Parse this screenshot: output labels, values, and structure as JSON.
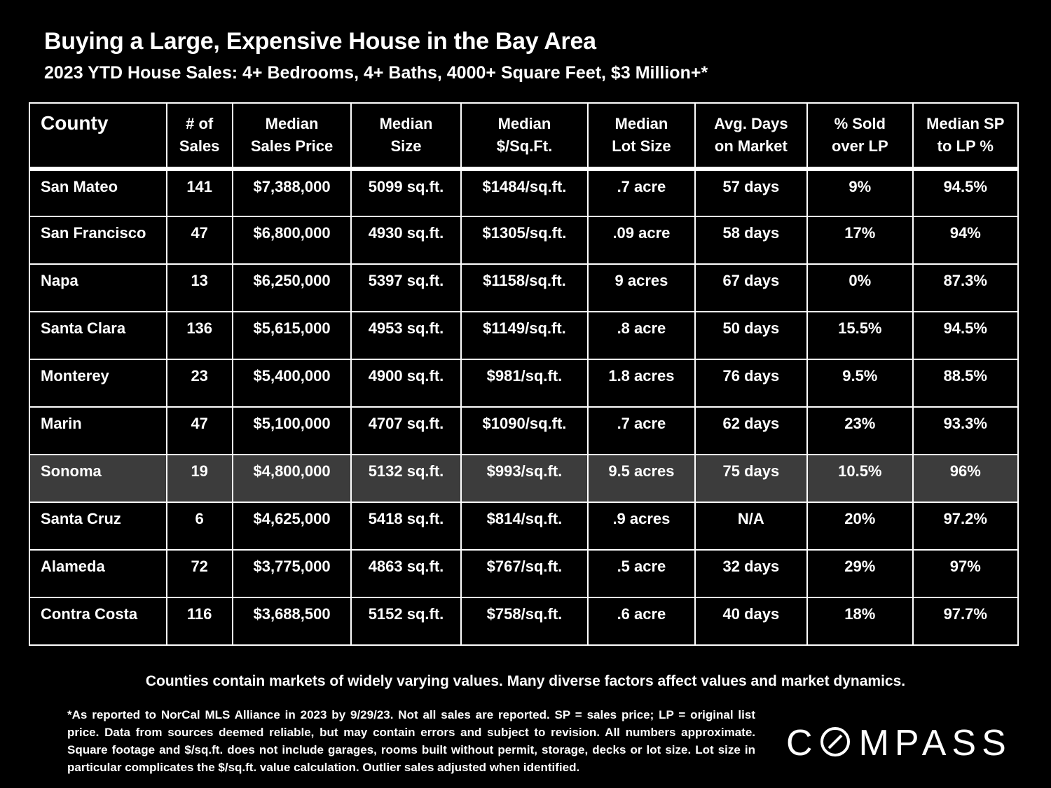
{
  "title": "Buying a Large, Expensive House in the Bay Area",
  "subtitle": "2023 YTD House Sales:  4+ Bedrooms, 4+ Baths, 4000+ Square Feet, $3 Million+*",
  "chart_data": {
    "type": "table",
    "columns": [
      {
        "line1": "County",
        "line2": ""
      },
      {
        "line1": "# of",
        "line2": "Sales"
      },
      {
        "line1": "Median",
        "line2": "Sales Price"
      },
      {
        "line1": "Median",
        "line2": "Size"
      },
      {
        "line1": "Median",
        "line2": "$/Sq.Ft."
      },
      {
        "line1": "Median",
        "line2": "Lot Size"
      },
      {
        "line1": "Avg. Days",
        "line2": "on Market"
      },
      {
        "line1": "% Sold",
        "line2": "over LP"
      },
      {
        "line1": "Median SP",
        "line2": "to LP %"
      }
    ],
    "rows": [
      [
        "San Mateo",
        "141",
        "$7,388,000",
        "5099 sq.ft.",
        "$1484/sq.ft.",
        ".7 acre",
        "57 days",
        "9%",
        "94.5%"
      ],
      [
        "San Francisco",
        "47",
        "$6,800,000",
        "4930 sq.ft.",
        "$1305/sq.ft.",
        ".09 acre",
        "58 days",
        "17%",
        "94%"
      ],
      [
        "Napa",
        "13",
        "$6,250,000",
        "5397 sq.ft.",
        "$1158/sq.ft.",
        "9 acres",
        "67 days",
        "0%",
        "87.3%"
      ],
      [
        "Santa Clara",
        "136",
        "$5,615,000",
        "4953 sq.ft.",
        "$1149/sq.ft.",
        ".8 acre",
        "50 days",
        "15.5%",
        "94.5%"
      ],
      [
        "Monterey",
        "23",
        "$5,400,000",
        "4900 sq.ft.",
        "$981/sq.ft.",
        "1.8 acres",
        "76 days",
        "9.5%",
        "88.5%"
      ],
      [
        "Marin",
        "47",
        "$5,100,000",
        "4707 sq.ft.",
        "$1090/sq.ft.",
        ".7 acre",
        "62 days",
        "23%",
        "93.3%"
      ],
      [
        "Sonoma",
        "19",
        "$4,800,000",
        "5132 sq.ft.",
        "$993/sq.ft.",
        "9.5 acres",
        "75 days",
        "10.5%",
        "96%"
      ],
      [
        "Santa Cruz",
        "6",
        "$4,625,000",
        "5418 sq.ft.",
        "$814/sq.ft.",
        ".9 acres",
        "N/A",
        "20%",
        "97.2%"
      ],
      [
        "Alameda",
        "72",
        "$3,775,000",
        "4863 sq.ft.",
        "$767/sq.ft.",
        ".5 acre",
        "32 days",
        "29%",
        "97%"
      ],
      [
        "Contra Costa",
        "116",
        "$3,688,500",
        "5152 sq.ft.",
        "$758/sq.ft.",
        ".6 acre",
        "40 days",
        "18%",
        "97.7%"
      ]
    ],
    "highlighted_row": "Sonoma"
  },
  "colors": {
    "background": "#000000",
    "text": "#ffffff",
    "highlight_row": "#3c3c3c"
  },
  "note": "Counties contain markets of widely varying values. Many diverse factors affect values and market dynamics.",
  "footnote": "*As reported to NorCal MLS Alliance in 2023 by 9/29/23. Not all sales are reported. SP = sales price;  LP = original list price. Data from sources deemed reliable, but may contain errors and subject to revision. All numbers approximate. Square footage and $/sq.ft. does not include garages, rooms built without permit, storage, decks or lot size. Lot size in particular complicates the $/sq.ft. value calculation. Outlier sales adjusted when identified.",
  "logo": {
    "text": "COMPASS",
    "icon": "compass-logo-o-icon"
  }
}
